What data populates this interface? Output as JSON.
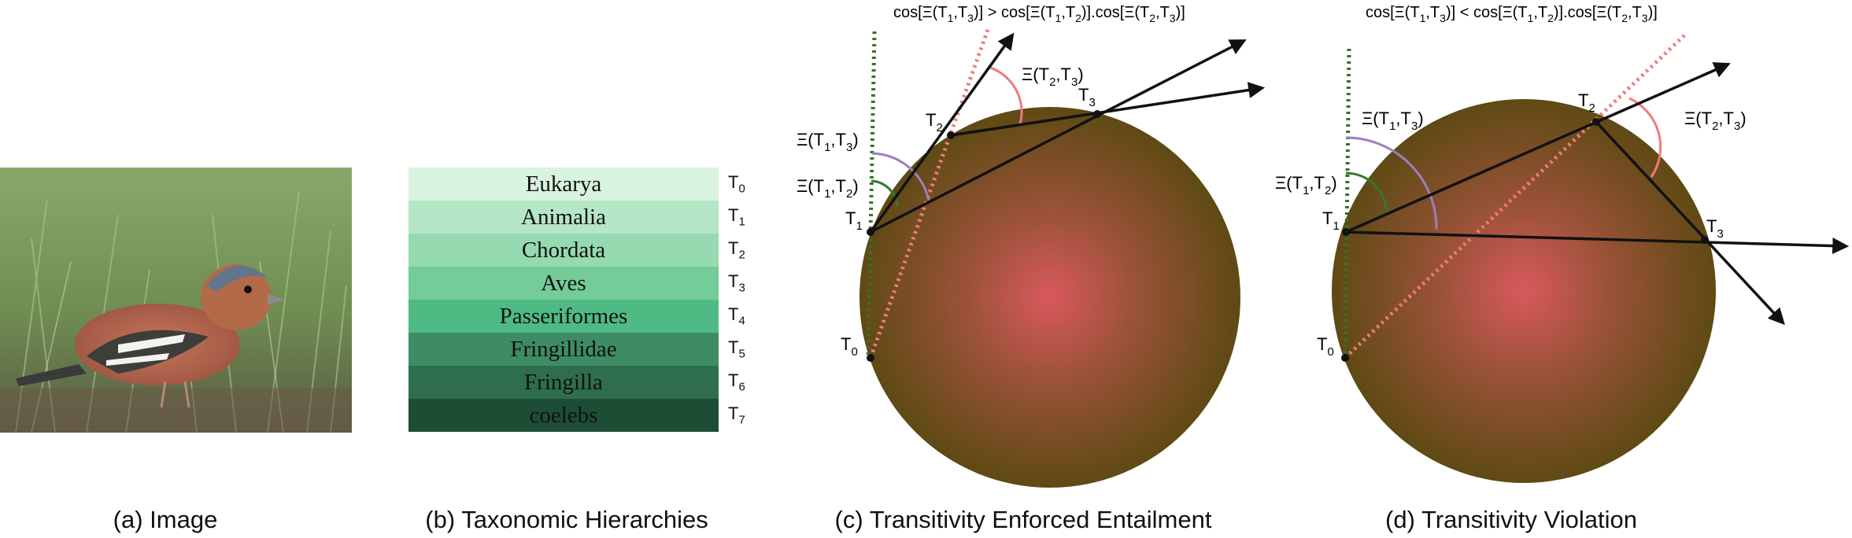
{
  "captions": {
    "a": "(a) Image",
    "b": "(b) Taxonomic Hierarchies",
    "c": "(c) Transitivity Enforced Entailment",
    "d": "(d) Transitivity Violation"
  },
  "image": {
    "subject": "bird-photo"
  },
  "taxonomy": [
    {
      "name": "Eukarya",
      "level": "T",
      "sub": "0",
      "color": "#d8f3df",
      "text_color": "#111111"
    },
    {
      "name": "Animalia",
      "level": "T",
      "sub": "1",
      "color": "#b5e6c6",
      "text_color": "#111111"
    },
    {
      "name": "Chordata",
      "level": "T",
      "sub": "2",
      "color": "#95dab0",
      "text_color": "#111111"
    },
    {
      "name": "Aves",
      "level": "T",
      "sub": "3",
      "color": "#74cc99",
      "text_color": "#111111"
    },
    {
      "name": "Passeriformes",
      "level": "T",
      "sub": "4",
      "color": "#4fbb84",
      "text_color": "#111111"
    },
    {
      "name": "Fringillidae",
      "level": "T",
      "sub": "5",
      "color": "#3d8c64",
      "text_color": "#111111"
    },
    {
      "name": "Fringilla",
      "level": "T",
      "sub": "6",
      "color": "#2e6e4c",
      "text_color": "#111111"
    },
    {
      "name": "coelebs",
      "level": "T",
      "sub": "7",
      "color": "#1d4d35",
      "text_color": "#111111"
    }
  ],
  "diagram_c": {
    "formula": {
      "pre": "cos[Ξ(T",
      "s1": "1",
      "m1": ",T",
      "s2": "3",
      "m2": ")] > cos[Ξ(T",
      "s3": "1",
      "m3": ",T",
      "s4": "2",
      "m4": ")].cos[Ξ(T",
      "s5": "2",
      "m5": ",T",
      "s6": "3",
      "post": ")]"
    },
    "points": [
      "T0",
      "T1",
      "T2",
      "T3"
    ],
    "angles": [
      "Ξ(T1,T3)",
      "Ξ(T1,T2)",
      "Ξ(T2,T3)"
    ]
  },
  "diagram_d": {
    "formula": {
      "pre": "cos[Ξ(T",
      "s1": "1",
      "m1": ",T",
      "s2": "3",
      "m2": ")] < cos[Ξ(T",
      "s3": "1",
      "m3": ",T",
      "s4": "2",
      "m4": ")].cos[Ξ(T",
      "s5": "2",
      "m5": ",T",
      "s6": "3",
      "post": ")]"
    },
    "points": [
      "T0",
      "T1",
      "T2",
      "T3"
    ],
    "angles": [
      "Ξ(T1,T3)",
      "Ξ(T1,T2)",
      "Ξ(T2,T3)"
    ]
  },
  "colors": {
    "ball_center": "#d9595c",
    "ball_edge": "#5e4a14",
    "green_dotted": "#3b6f28",
    "red_dotted": "#f07b7b",
    "purple_arc": "#9b7fbd",
    "green_arc": "#2e7a2e",
    "pink_arc": "#f07b7b"
  }
}
